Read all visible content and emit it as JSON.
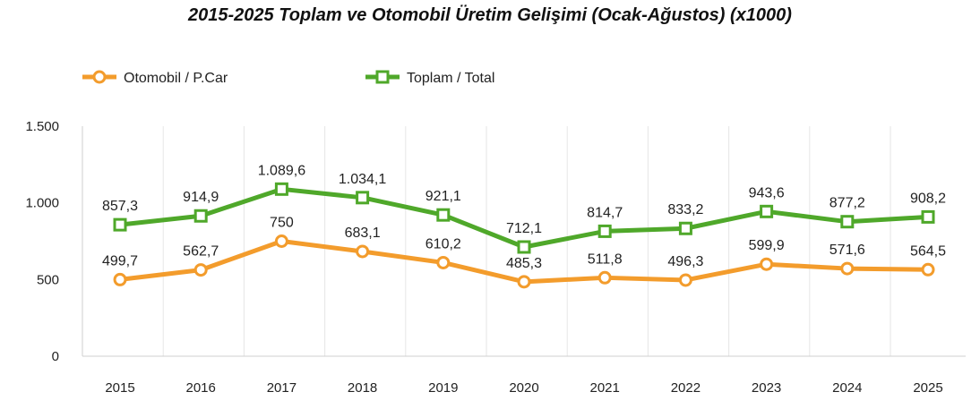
{
  "chart_data": {
    "type": "line",
    "title": "2015-2025 Toplam ve Otomobil Üretim Gelişimi (Ocak-Ağustos) (x1000)",
    "xlabel": "",
    "ylabel": "",
    "categories": [
      "2015",
      "2016",
      "2017",
      "2018",
      "2019",
      "2020",
      "2021",
      "2022",
      "2023",
      "2024",
      "2025"
    ],
    "ylim": [
      0,
      1500
    ],
    "yticks": [
      0,
      500,
      1000,
      1500
    ],
    "ytick_labels": [
      "0",
      "500",
      "1.000",
      "1.500"
    ],
    "legend_position": "top-left",
    "grid": "vertical",
    "series": [
      {
        "name": "Otomobil / P.Car",
        "color": "#F39C2C",
        "marker": "circle",
        "values": [
          499.7,
          562.7,
          750,
          683.1,
          610.2,
          485.3,
          511.8,
          496.3,
          599.9,
          571.6,
          564.5
        ],
        "labels": [
          "499,7",
          "562,7",
          "750",
          "683,1",
          "610,2",
          "485,3",
          "511,8",
          "496,3",
          "599,9",
          "571,6",
          "564,5"
        ]
      },
      {
        "name": "Toplam / Total",
        "color": "#4FA82A",
        "marker": "square",
        "values": [
          857.3,
          914.9,
          1089.6,
          1034.1,
          921.1,
          712.1,
          814.7,
          833.2,
          943.6,
          877.2,
          908.2
        ],
        "labels": [
          "857,3",
          "914,9",
          "1.089,6",
          "1.034,1",
          "921,1",
          "712,1",
          "814,7",
          "833,2",
          "943,6",
          "877,2",
          "908,2"
        ]
      }
    ]
  }
}
